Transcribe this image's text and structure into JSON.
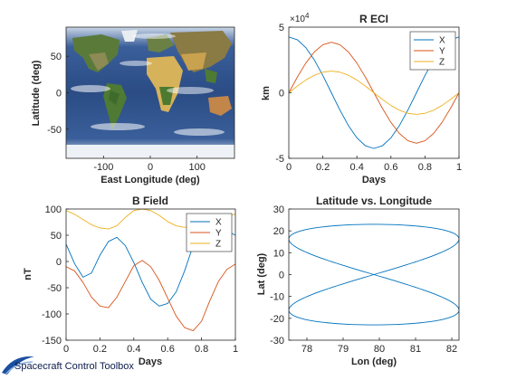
{
  "footer": {
    "label": "Spacecraft Control Toolbox",
    "logo_color": "#1b4fa0"
  },
  "colors": {
    "x": "#0072BD",
    "y": "#D95319",
    "z": "#EDB120",
    "axis": "#262626"
  },
  "chart_data": [
    {
      "id": "map",
      "type": "map",
      "title": "",
      "xlabel": "East Longitude (deg)",
      "ylabel": "Latitude (deg)",
      "xlim": [
        -180,
        180
      ],
      "ylim": [
        -90,
        90
      ],
      "xticks": [
        -100,
        0,
        100
      ],
      "yticks": [
        -50,
        0,
        50
      ],
      "image": "world-map"
    },
    {
      "id": "reci",
      "type": "line",
      "title": "R ECI",
      "xlabel": "Days",
      "ylabel": "km",
      "xlim": [
        0,
        1
      ],
      "ylim": [
        -50000,
        50000
      ],
      "xticks": [
        0,
        0.2,
        0.4,
        0.6,
        0.8,
        1
      ],
      "yticks": [
        -5,
        0,
        5
      ],
      "yexponent": "×10",
      "yexponent_power": "4",
      "legend": "top-right",
      "x": [
        0,
        0.05,
        0.1,
        0.15,
        0.2,
        0.25,
        0.3,
        0.35,
        0.4,
        0.45,
        0.5,
        0.55,
        0.6,
        0.65,
        0.7,
        0.75,
        0.8,
        0.85,
        0.9,
        0.95,
        1
      ],
      "series": [
        {
          "name": "X",
          "color": "#0072BD",
          "values": [
            42500,
            40420,
            34380,
            24980,
            13130,
            0,
            -13130,
            -24980,
            -34380,
            -40420,
            -42500,
            -40420,
            -34380,
            -24980,
            -13130,
            0,
            13130,
            24980,
            34380,
            40420,
            42500
          ]
        },
        {
          "name": "Y",
          "color": "#D95319",
          "values": [
            0,
            11890,
            22620,
            31130,
            36600,
            38500,
            36600,
            31130,
            22620,
            11890,
            0,
            -11890,
            -22620,
            -31130,
            -36600,
            -38500,
            -36600,
            -31130,
            -22620,
            -11890,
            0
          ]
        },
        {
          "name": "Z",
          "color": "#EDB120",
          "values": [
            0,
            5100,
            9700,
            13350,
            15690,
            16500,
            15690,
            13350,
            9700,
            5100,
            0,
            -5100,
            -9700,
            -13350,
            -15690,
            -16500,
            -15690,
            -13350,
            -9700,
            -5100,
            0
          ]
        }
      ]
    },
    {
      "id": "bfield",
      "type": "line",
      "title": "B Field",
      "xlabel": "Days",
      "ylabel": "nT",
      "xlim": [
        0,
        1
      ],
      "ylim": [
        -150,
        100
      ],
      "xticks": [
        0,
        0.2,
        0.4,
        0.6,
        0.8,
        1
      ],
      "yticks": [
        -150,
        -100,
        -50,
        0,
        50,
        100
      ],
      "legend": "top-right",
      "x": [
        0,
        0.05,
        0.1,
        0.15,
        0.2,
        0.25,
        0.3,
        0.35,
        0.4,
        0.45,
        0.5,
        0.55,
        0.6,
        0.65,
        0.7,
        0.75,
        0.8,
        0.85,
        0.9,
        0.95,
        1
      ],
      "series": [
        {
          "name": "X",
          "color": "#0072BD",
          "values": [
            33,
            -4,
            -30,
            -22,
            12,
            38,
            46,
            30,
            -2,
            -40,
            -72,
            -85,
            -80,
            -58,
            -18,
            30,
            62,
            70,
            66,
            58,
            50
          ]
        },
        {
          "name": "Y",
          "color": "#D95319",
          "values": [
            -10,
            -18,
            -40,
            -68,
            -85,
            -88,
            -68,
            -38,
            -8,
            2,
            -10,
            -36,
            -70,
            -104,
            -126,
            -132,
            -114,
            -74,
            -38,
            -15,
            -5
          ]
        },
        {
          "name": "Z",
          "color": "#EDB120",
          "values": [
            97,
            90,
            80,
            70,
            64,
            62,
            68,
            84,
            97,
            100,
            97,
            88,
            76,
            68,
            65,
            68,
            75,
            80,
            85,
            88,
            90
          ]
        }
      ]
    },
    {
      "id": "latlon",
      "type": "line",
      "title": "Latitude vs. Longitude",
      "xlabel": "Lon (deg)",
      "ylabel": "Lat (deg)",
      "xlim": [
        77.5,
        82.2
      ],
      "ylim": [
        -30,
        30
      ],
      "xticks": [
        78,
        79,
        80,
        81,
        82
      ],
      "yticks": [
        -30,
        -20,
        -10,
        0,
        10,
        20,
        30
      ],
      "center": [
        79.85,
        0
      ],
      "lon_amplitude": 2.35,
      "lat_amplitude": 23,
      "color": "#0072BD"
    }
  ]
}
